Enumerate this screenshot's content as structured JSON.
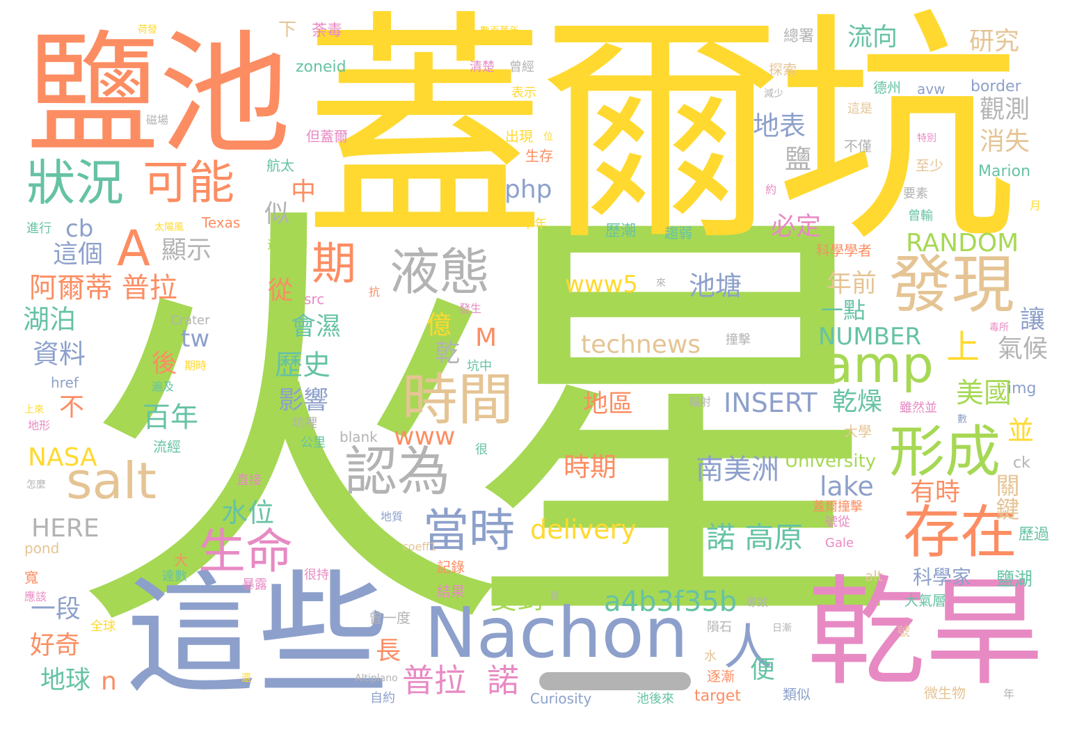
{
  "colors": {
    "green": "#a6d854",
    "yellow": "#ffd92f",
    "orange": "#fc8d62",
    "blue": "#8da0cb",
    "pink": "#e78ac3",
    "teal": "#66c2a5",
    "tan": "#e5c494",
    "gray": "#b3b3b3"
  },
  "words": [
    {
      "text": "火星",
      "color": "green"
    },
    {
      "text": "蓋爾坑",
      "color": "yellow"
    },
    {
      "text": "鹽池",
      "color": "orange"
    },
    {
      "text": "這些",
      "color": "blue"
    },
    {
      "text": "乾旱",
      "color": "pink"
    },
    {
      "text": "Nachon",
      "color": "blue"
    },
    {
      "text": "發現",
      "color": "tan"
    },
    {
      "text": "時間",
      "color": "tan"
    },
    {
      "text": "存在",
      "color": "orange"
    },
    {
      "text": "形成",
      "color": "green"
    },
    {
      "text": "amp",
      "color": "green"
    },
    {
      "text": "液態",
      "color": "gray"
    },
    {
      "text": "狀況",
      "color": "teal"
    },
    {
      "text": "可能",
      "color": "orange"
    },
    {
      "text": "salt",
      "color": "tan"
    },
    {
      "text": "認為",
      "color": "gray"
    },
    {
      "text": "當時",
      "color": "blue"
    },
    {
      "text": "生命",
      "color": "pink"
    },
    {
      "text": "期",
      "color": "orange"
    },
    {
      "text": "A",
      "color": "orange"
    },
    {
      "text": "上",
      "color": "yellow"
    },
    {
      "text": "人",
      "color": "blue"
    },
    {
      "text": "a4b3f35b",
      "color": "teal"
    },
    {
      "text": "普拉",
      "color": "pink"
    },
    {
      "text": "諾",
      "color": "pink"
    },
    {
      "text": "www5",
      "color": "yellow"
    },
    {
      "text": "technews",
      "color": "tan"
    },
    {
      "text": "池塘",
      "color": "blue"
    },
    {
      "text": "delivery",
      "color": "yellow"
    },
    {
      "text": "諾 高原",
      "color": "teal"
    },
    {
      "text": "南美洲",
      "color": "blue"
    },
    {
      "text": "INSERT",
      "color": "blue"
    },
    {
      "text": "乾燥",
      "color": "teal"
    },
    {
      "text": "RANDOM",
      "color": "green"
    },
    {
      "text": "NUMBER",
      "color": "teal"
    },
    {
      "text": "美國",
      "color": "green"
    },
    {
      "text": "流向",
      "color": "teal"
    },
    {
      "text": "研究",
      "color": "tan"
    },
    {
      "text": "觀測",
      "color": "gray"
    },
    {
      "text": "消失",
      "color": "tan"
    },
    {
      "text": "地表",
      "color": "blue"
    },
    {
      "text": "鹽",
      "color": "gray"
    },
    {
      "text": "必定",
      "color": "pink"
    },
    {
      "text": "年前",
      "color": "tan"
    },
    {
      "text": "一點",
      "color": "teal"
    },
    {
      "text": "氣候",
      "color": "gray"
    },
    {
      "text": "讓",
      "color": "blue"
    },
    {
      "text": "並",
      "color": "yellow"
    },
    {
      "text": "關鍵",
      "color": "tan"
    },
    {
      "text": "有時",
      "color": "orange"
    },
    {
      "text": "lake",
      "color": "blue"
    },
    {
      "text": "University",
      "color": "green"
    },
    {
      "text": "科學家",
      "color": "blue"
    },
    {
      "text": "鹽湖",
      "color": "teal"
    },
    {
      "text": "歷過",
      "color": "teal"
    },
    {
      "text": "大氣層",
      "color": "teal"
    },
    {
      "text": "微生物",
      "color": "tan"
    },
    {
      "text": "php",
      "color": "blue"
    },
    {
      "text": "中",
      "color": "orange"
    },
    {
      "text": "似",
      "color": "gray"
    },
    {
      "text": "cb",
      "color": "blue"
    },
    {
      "text": "這個",
      "color": "blue"
    },
    {
      "text": "顯示",
      "color": "gray"
    },
    {
      "text": "阿爾蒂 普拉",
      "color": "orange"
    },
    {
      "text": "湖泊",
      "color": "teal"
    },
    {
      "text": "資料",
      "color": "blue"
    },
    {
      "text": "tw",
      "color": "blue"
    },
    {
      "text": "後",
      "color": "orange"
    },
    {
      "text": "歷史",
      "color": "teal"
    },
    {
      "text": "會濕",
      "color": "teal"
    },
    {
      "text": "從",
      "color": "orange"
    },
    {
      "text": "億",
      "color": "yellow"
    },
    {
      "text": "乾",
      "color": "gray"
    },
    {
      "text": "M",
      "color": "orange"
    },
    {
      "text": "影響",
      "color": "blue"
    },
    {
      "text": "百年",
      "color": "teal"
    },
    {
      "text": "不",
      "color": "orange"
    },
    {
      "text": "www",
      "color": "orange"
    },
    {
      "text": "地區",
      "color": "orange"
    },
    {
      "text": "時期",
      "color": "orange"
    },
    {
      "text": "水位",
      "color": "teal"
    },
    {
      "text": "受到",
      "color": "green"
    },
    {
      "text": "長",
      "color": "orange"
    },
    {
      "text": "便",
      "color": "teal"
    },
    {
      "text": "NASA",
      "color": "yellow"
    },
    {
      "text": "HERE",
      "color": "gray"
    },
    {
      "text": "一段",
      "color": "blue"
    },
    {
      "text": "好奇",
      "color": "orange"
    },
    {
      "text": "地球",
      "color": "teal"
    },
    {
      "text": "n",
      "color": "orange"
    },
    {
      "text": "Marion",
      "color": "teal"
    },
    {
      "text": "border",
      "color": "blue"
    },
    {
      "text": "avw",
      "color": "blue"
    },
    {
      "text": "德州",
      "color": "teal"
    },
    {
      "text": "zoneid",
      "color": "teal"
    },
    {
      "text": "Texas",
      "color": "orange"
    },
    {
      "text": "img",
      "color": "blue"
    },
    {
      "text": "ck",
      "color": "gray"
    },
    {
      "text": "alt",
      "color": "tan"
    },
    {
      "text": "target",
      "color": "orange"
    },
    {
      "text": "Curiosity",
      "color": "blue"
    },
    {
      "text": "blank",
      "color": "gray"
    },
    {
      "text": "Crater",
      "color": "gray"
    },
    {
      "text": "href",
      "color": "blue"
    },
    {
      "text": "src",
      "color": "pink"
    },
    {
      "text": "pond",
      "color": "tan"
    },
    {
      "text": "Gale",
      "color": "pink"
    },
    {
      "text": "下",
      "color": "tan"
    },
    {
      "text": "荼毒",
      "color": "pink"
    },
    {
      "text": "總署",
      "color": "gray"
    },
    {
      "text": "探索",
      "color": "tan"
    },
    {
      "text": "清楚",
      "color": "pink"
    },
    {
      "text": "曾經",
      "color": "gray"
    },
    {
      "text": "表示",
      "color": "yellow"
    },
    {
      "text": "出現",
      "color": "yellow"
    },
    {
      "text": "生存",
      "color": "orange"
    },
    {
      "text": "航太",
      "color": "teal"
    },
    {
      "text": "但蓋爾",
      "color": "pink"
    },
    {
      "text": "不僅",
      "color": "gray"
    },
    {
      "text": "這是",
      "color": "tan"
    },
    {
      "text": "至少",
      "color": "tan"
    },
    {
      "text": "要素",
      "color": "gray"
    },
    {
      "text": "曾輸",
      "color": "teal"
    },
    {
      "text": "科學學者",
      "color": "orange"
    },
    {
      "text": "歷潮",
      "color": "teal"
    },
    {
      "text": "趨弱",
      "color": "teal"
    },
    {
      "text": "千年",
      "color": "yellow"
    },
    {
      "text": "進行",
      "color": "teal"
    },
    {
      "text": "這段",
      "color": "green"
    },
    {
      "text": "撞擊",
      "color": "gray"
    },
    {
      "text": "期時",
      "color": "yellow"
    },
    {
      "text": "坑中",
      "color": "teal"
    },
    {
      "text": "發生",
      "color": "pink"
    },
    {
      "text": "雖然並",
      "color": "pink"
    },
    {
      "text": "輻射",
      "color": "gray"
    },
    {
      "text": "大學",
      "color": "tan"
    },
    {
      "text": "地形",
      "color": "pink"
    },
    {
      "text": "坑裡",
      "color": "gray"
    },
    {
      "text": "公里",
      "color": "teal"
    },
    {
      "text": "流經",
      "color": "teal"
    },
    {
      "text": "很",
      "color": "teal"
    },
    {
      "text": "直接",
      "color": "pink"
    },
    {
      "text": "地質",
      "color": "blue"
    },
    {
      "text": "號從",
      "color": "pink"
    },
    {
      "text": "記錄",
      "color": "orange"
    },
    {
      "text": "結果",
      "color": "pink"
    },
    {
      "text": "曾一度",
      "color": "gray"
    },
    {
      "text": "很持",
      "color": "pink"
    },
    {
      "text": "達數",
      "color": "teal"
    },
    {
      "text": "暴露",
      "color": "pink"
    },
    {
      "text": "大",
      "color": "orange"
    },
    {
      "text": "寬",
      "color": "orange"
    },
    {
      "text": "應該",
      "color": "pink"
    },
    {
      "text": "全球",
      "color": "yellow"
    },
    {
      "text": "隕石",
      "color": "gray"
    },
    {
      "text": "逐漸",
      "color": "orange"
    },
    {
      "text": "類似",
      "color": "blue"
    },
    {
      "text": "自約",
      "color": "blue"
    },
    {
      "text": "池後來",
      "color": "teal"
    },
    {
      "text": "水",
      "color": "tan"
    },
    {
      "text": "導致",
      "color": "gray"
    },
    {
      "text": "號",
      "color": "tan"
    },
    {
      "text": "年",
      "color": "gray"
    },
    {
      "text": "蓋爾撞擊",
      "color": "orange"
    },
    {
      "text": "coeff1",
      "color": "tan"
    },
    {
      "text": "Altiplano",
      "color": "gray"
    },
    {
      "text": "數百萬年",
      "color": "yellow"
    },
    {
      "text": "荷發",
      "color": "yellow"
    },
    {
      "text": "磁場",
      "color": "gray"
    },
    {
      "text": "上來",
      "color": "yellow"
    },
    {
      "text": "怎麼",
      "color": "gray"
    },
    {
      "text": "遍及",
      "color": "teal"
    },
    {
      "text": "太陽風",
      "color": "yellow"
    },
    {
      "text": "減少",
      "color": "gray"
    },
    {
      "text": "特別",
      "color": "pink"
    },
    {
      "text": "月",
      "color": "yellow"
    },
    {
      "text": "約",
      "color": "pink"
    },
    {
      "text": "數",
      "color": "blue"
    },
    {
      "text": "位",
      "color": "yellow"
    },
    {
      "text": "來",
      "color": "gray"
    },
    {
      "text": "抗",
      "color": "orange"
    },
    {
      "text": "曾",
      "color": "gray"
    },
    {
      "text": "還",
      "color": "yellow"
    },
    {
      "text": "日漸",
      "color": "gray"
    },
    {
      "text": "毒所",
      "color": "pink"
    }
  ]
}
